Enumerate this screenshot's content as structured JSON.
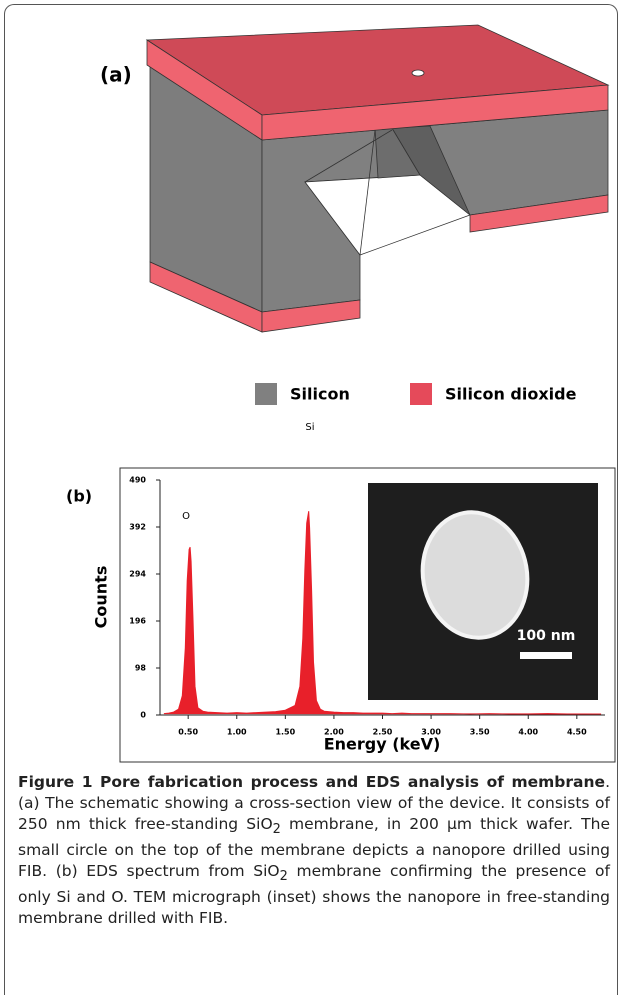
{
  "panel_a": {
    "label": "(a)",
    "legend": [
      "Silicon",
      "Silicon dioxide"
    ]
  },
  "chart_data": {
    "type": "area",
    "panel_label": "(b)",
    "x_label": "Energy (keV)",
    "y_label": "Counts",
    "color": "#e8202a",
    "peak_labels": [
      "O",
      "Si"
    ],
    "inset_label": "100 nm",
    "x": [
      0.25,
      0.3,
      0.35,
      0.4,
      0.44,
      0.47,
      0.49,
      0.51,
      0.52,
      0.53,
      0.55,
      0.57,
      0.6,
      0.65,
      0.7,
      0.8,
      0.9,
      1.0,
      1.1,
      1.2,
      1.3,
      1.4,
      1.5,
      1.6,
      1.65,
      1.68,
      1.7,
      1.72,
      1.74,
      1.75,
      1.77,
      1.79,
      1.82,
      1.86,
      1.9,
      2.0,
      2.1,
      2.2,
      2.3,
      2.4,
      2.5,
      2.6,
      2.7,
      2.8,
      2.9,
      3.0,
      3.2,
      3.4,
      3.6,
      3.8,
      4.0,
      4.2,
      4.4,
      4.6,
      4.75
    ],
    "values": [
      3,
      4,
      6,
      12,
      40,
      140,
      280,
      345,
      350,
      320,
      200,
      60,
      15,
      8,
      6,
      5,
      4,
      5,
      4,
      5,
      6,
      7,
      10,
      20,
      60,
      160,
      300,
      400,
      425,
      390,
      260,
      110,
      30,
      12,
      8,
      6,
      5,
      5,
      4,
      4,
      4,
      3,
      4,
      3,
      3,
      3,
      3,
      2,
      3,
      2,
      2,
      3,
      2,
      2,
      2
    ],
    "xlim": [
      0.21,
      4.79
    ],
    "ylim": [
      0,
      490
    ],
    "xticks": [
      {
        "value": 0.5,
        "label": "0.50"
      },
      {
        "value": 1,
        "label": "1.00"
      },
      {
        "value": 1.5,
        "label": "1.50"
      },
      {
        "value": 2,
        "label": "2.00"
      },
      {
        "value": 2.5,
        "label": "2.50"
      },
      {
        "value": 3,
        "label": "3.00"
      },
      {
        "value": 3.5,
        "label": "3.50"
      },
      {
        "value": 4,
        "label": "4.00"
      },
      {
        "value": 4.5,
        "label": "4.50"
      }
    ],
    "yticks": [
      0,
      98,
      196,
      294,
      392,
      490
    ]
  },
  "caption": {
    "title": "Figure 1 Pore fabrication process and EDS analysis of membrane",
    "body": [
      ". (a) The schematic showing a cross-section view of the device. It consists of 250 nm thick free-standing SiO",
      "2",
      " membrane, in 200 μm thick wafer. The small circle on the top of the membrane depicts a nanopore drilled using FIB. (b) EDS spectrum from SiO",
      "2",
      " membrane confirming the presence of only Si and O. TEM micrograph (inset) shows the nanopore in free-standing membrane drilled with FIB."
    ]
  }
}
